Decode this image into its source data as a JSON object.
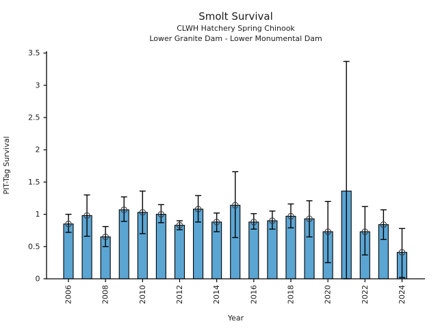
{
  "header": {
    "title": "Smolt Survival",
    "subtitle1": "CLWH Hatchery Spring Chinook",
    "subtitle2": "Lower Granite Dam - Lower Monumental Dam"
  },
  "chart_data": {
    "type": "bar",
    "title": "Smolt Survival",
    "subtitle1": "CLWH Hatchery Spring Chinook",
    "subtitle2": "Lower Granite Dam - Lower Monumental Dam",
    "xlabel": "Year",
    "ylabel": "PIT-Tag Survival",
    "ylim": [
      0,
      3.5
    ],
    "yticks": [
      0,
      0.5,
      1,
      1.5,
      2,
      2.5,
      3,
      3.5
    ],
    "ytick_labels": [
      "0",
      "0.5",
      "1",
      "1.5",
      "2",
      "2.5",
      "3",
      "3.5"
    ],
    "xtick_years": [
      2006,
      2008,
      2010,
      2012,
      2014,
      2016,
      2018,
      2020,
      2022,
      2024
    ],
    "xtick_labels": [
      "2006",
      "2008",
      "2010",
      "2012",
      "2014",
      "2016",
      "2018",
      "2020",
      "2022",
      "2024"
    ],
    "categories": [
      2006,
      2007,
      2008,
      2009,
      2010,
      2011,
      2012,
      2013,
      2014,
      2015,
      2016,
      2017,
      2018,
      2019,
      2020,
      2021,
      2022,
      2023,
      2024
    ],
    "values": [
      0.85,
      0.98,
      0.65,
      1.07,
      1.03,
      1.0,
      0.83,
      1.08,
      0.88,
      1.14,
      0.88,
      0.9,
      0.97,
      0.93,
      0.73,
      1.36,
      0.73,
      0.84,
      0.41
    ],
    "ci_low": [
      0.72,
      0.66,
      0.5,
      0.89,
      0.7,
      0.87,
      0.76,
      0.88,
      0.73,
      0.64,
      0.77,
      0.77,
      0.79,
      0.65,
      0.25,
      0.0,
      0.37,
      0.61,
      0.02
    ],
    "ci_high": [
      1.0,
      1.3,
      0.81,
      1.27,
      1.36,
      1.15,
      0.9,
      1.29,
      1.02,
      1.66,
      1.01,
      1.05,
      1.16,
      1.21,
      1.2,
      3.37,
      1.12,
      1.07,
      0.78
    ],
    "marker": "open-circle",
    "years_without_marker": [
      2021
    ],
    "bar_color": "#5BA5D3",
    "bar_edge_color": "#000000",
    "errorbar_color": "#000000",
    "marker_color": "#3a3a3a",
    "grid": "off",
    "legend": "none"
  }
}
